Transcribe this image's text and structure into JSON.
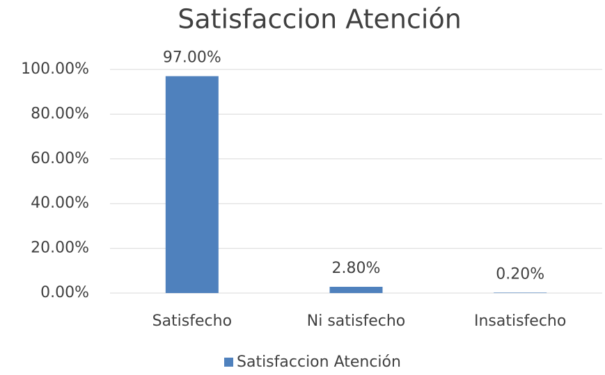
{
  "chart_data": {
    "type": "bar",
    "title": "Satisfaccion Atención",
    "categories": [
      "Satisfecho",
      "Ni satisfecho",
      "Insatisfecho"
    ],
    "series": [
      {
        "name": "Satisfaccion Atención",
        "color": "#4f81bd",
        "values": [
          97,
          2.8,
          0.2
        ],
        "value_labels": [
          "97.00%",
          "2.80%",
          "0.20%"
        ]
      }
    ],
    "ylim": [
      0,
      100
    ],
    "yticks": [
      {
        "value": 0,
        "label": "0.00%"
      },
      {
        "value": 20,
        "label": "20.00%"
      },
      {
        "value": 40,
        "label": "40.00%"
      },
      {
        "value": 60,
        "label": "60.00%"
      },
      {
        "value": 80,
        "label": "80.00%"
      },
      {
        "value": 100,
        "label": "100.00%"
      }
    ],
    "grid": true,
    "legend": "bottom"
  }
}
